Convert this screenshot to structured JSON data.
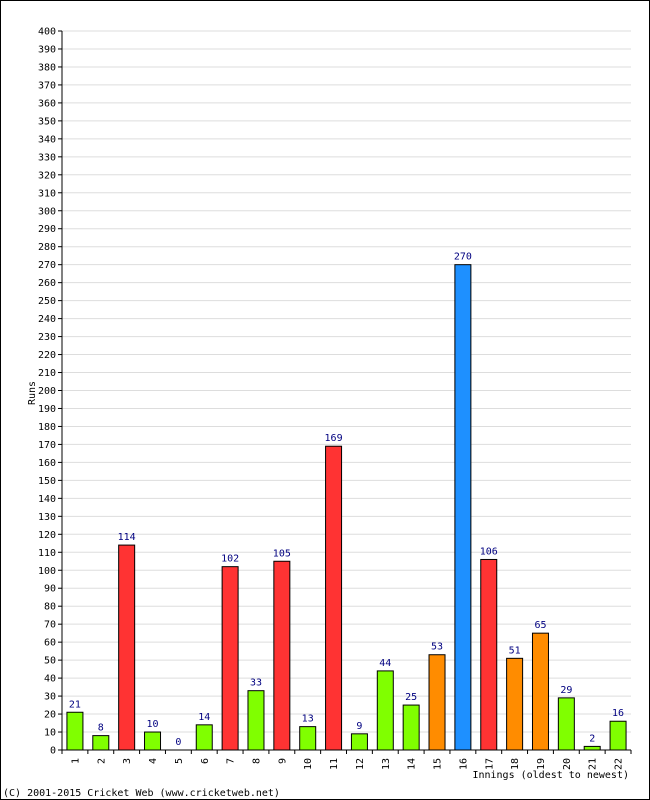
{
  "chart_data": {
    "type": "bar",
    "ylabel": "Runs",
    "xlabel": "Innings (oldest to newest)",
    "ylim": [
      0,
      400
    ],
    "ytick_step": 10,
    "grid": true,
    "categories": [
      "1",
      "2",
      "3",
      "4",
      "5",
      "6",
      "7",
      "8",
      "9",
      "10",
      "11",
      "12",
      "13",
      "14",
      "15",
      "16",
      "17",
      "18",
      "19",
      "20",
      "21",
      "22"
    ],
    "values": [
      21,
      8,
      114,
      10,
      0,
      14,
      102,
      33,
      105,
      13,
      169,
      9,
      44,
      25,
      53,
      270,
      106,
      51,
      65,
      29,
      2,
      16
    ],
    "bar_colors": [
      "#80ff00",
      "#80ff00",
      "#ff3333",
      "#80ff00",
      "#80ff00",
      "#80ff00",
      "#ff3333",
      "#80ff00",
      "#ff3333",
      "#80ff00",
      "#ff3333",
      "#80ff00",
      "#80ff00",
      "#80ff00",
      "#ff8c00",
      "#1e90ff",
      "#ff3333",
      "#ff8c00",
      "#ff8c00",
      "#80ff00",
      "#80ff00",
      "#80ff00"
    ]
  },
  "footer": {
    "copyright": "(C) 2001-2015 Cricket Web (www.cricketweb.net)"
  }
}
